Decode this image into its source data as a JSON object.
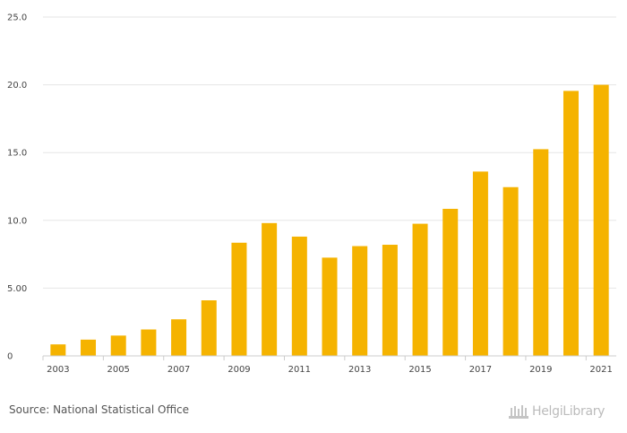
{
  "chart_data": {
    "type": "bar",
    "categories": [
      "2003",
      "2004",
      "2005",
      "2006",
      "2007",
      "2008",
      "2009",
      "2010",
      "2011",
      "2012",
      "2013",
      "2014",
      "2015",
      "2016",
      "2017",
      "2018",
      "2019",
      "2020",
      "2021"
    ],
    "values": [
      0.85,
      1.2,
      1.5,
      1.95,
      2.7,
      4.1,
      8.35,
      9.8,
      8.8,
      7.25,
      8.1,
      8.2,
      9.75,
      10.85,
      13.6,
      12.45,
      15.25,
      19.55,
      20.0
    ],
    "x_tick_labels": [
      "2003",
      "2005",
      "2007",
      "2009",
      "2011",
      "2013",
      "2015",
      "2017",
      "2019",
      "2021"
    ],
    "y_ticks": [
      0,
      5,
      10,
      15,
      20,
      25
    ],
    "y_tick_labels": [
      "0",
      "5.00",
      "10.0",
      "15.0",
      "20.0",
      "25.0"
    ],
    "ylim": [
      0,
      25
    ],
    "title": "",
    "xlabel": "",
    "ylabel": "",
    "grid": true,
    "bar_color": "#f5b300",
    "grid_color": "#e6e6e6",
    "axis_color": "#cccccc"
  },
  "footer": {
    "source": "Source: National Statistical Office",
    "brand": "HelgiLibrary"
  }
}
